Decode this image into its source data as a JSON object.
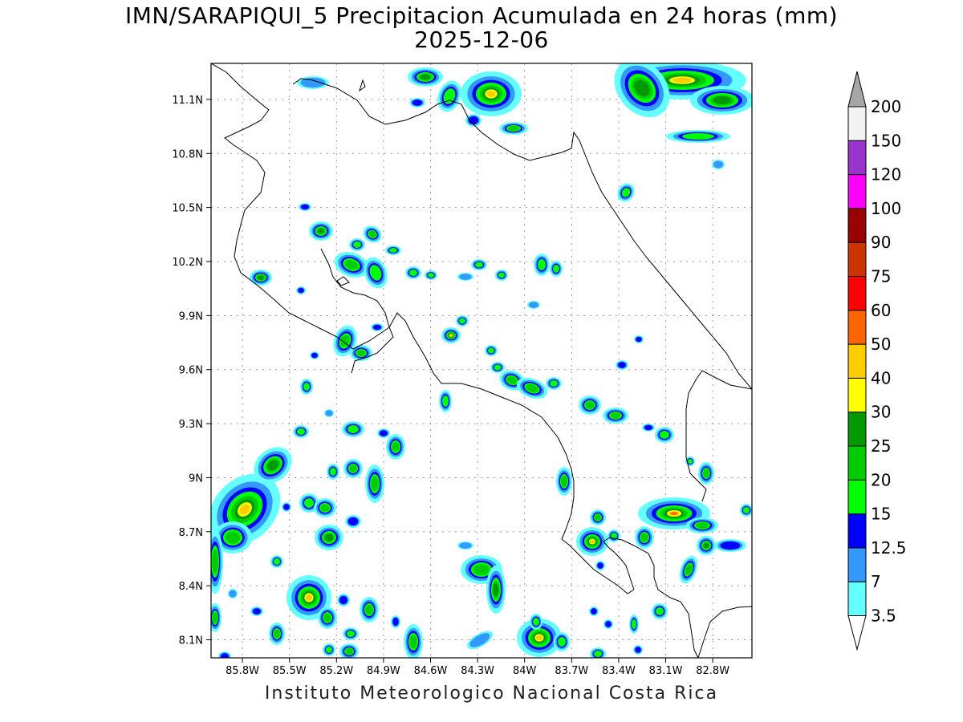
{
  "title": {
    "line1": "IMN/SARAPIQUI_5 Precipitacion Acumulada en 24 horas (mm)",
    "line2": "2025-12-06"
  },
  "credit": "Instituto Meteorologico Nacional Costa Rica",
  "map": {
    "lon_range": [
      -86.0,
      -82.55
    ],
    "lat_range": [
      8.0,
      11.3
    ],
    "lon_ticks": [
      "85.8W",
      "85.5W",
      "85.2W",
      "84.9W",
      "84.6W",
      "84.3W",
      "84W",
      "83.7W",
      "83.4W",
      "83.1W",
      "82.8W"
    ],
    "lat_ticks": [
      "11.1N",
      "10.8N",
      "10.5N",
      "10.2N",
      "9.9N",
      "9.6N",
      "9.3N",
      "9N",
      "8.7N",
      "8.4N",
      "8.1N"
    ]
  },
  "legend": {
    "levels": [
      "3.5",
      "7",
      "12.5",
      "15",
      "20",
      "25",
      "30",
      "40",
      "50",
      "60",
      "75",
      "90",
      "100",
      "120",
      "150",
      "200"
    ],
    "colors": [
      "#66ffff",
      "#3399ff",
      "#0000ff",
      "#00ff00",
      "#00cc00",
      "#009900",
      "#ffff00",
      "#ffcc00",
      "#ff6600",
      "#ff0000",
      "#cc3300",
      "#990000",
      "#ff00ff",
      "#9933cc",
      "#f2f2f2"
    ],
    "top_arrow_color": "#a6a6a6",
    "bottom_arrow_color": "#ffffff"
  }
}
